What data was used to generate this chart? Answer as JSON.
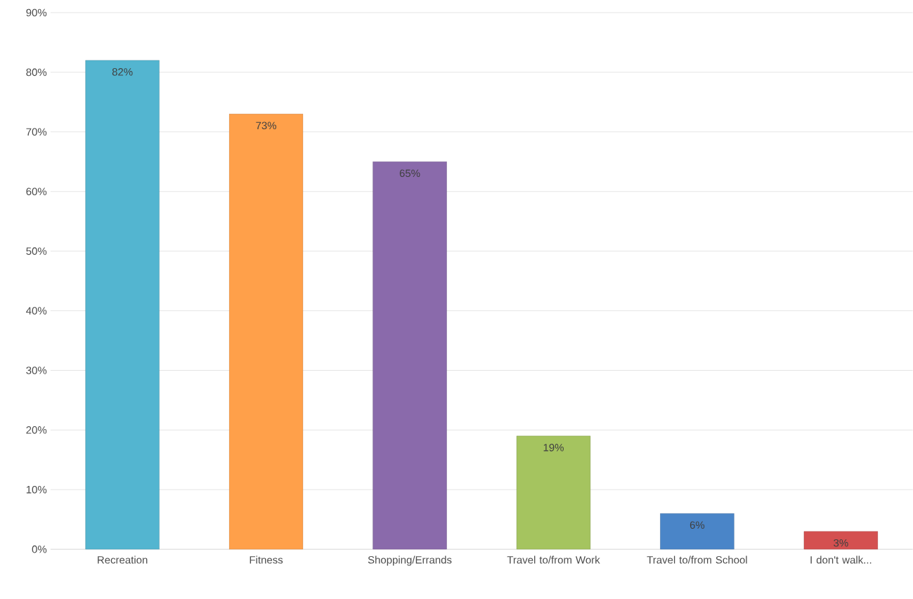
{
  "chart_data": {
    "type": "bar",
    "categories": [
      "Recreation",
      "Fitness",
      "Shopping/Errands",
      "Travel to/from Work",
      "Travel to/from School",
      "I don't walk..."
    ],
    "values": [
      82,
      73,
      65,
      19,
      6,
      3
    ],
    "colors": [
      "#53b5d0",
      "#ffa04a",
      "#8a6aab",
      "#a5c45f",
      "#4a85c8",
      "#d45050"
    ],
    "value_labels": [
      "82%",
      "73%",
      "65%",
      "19%",
      "6%",
      "3%"
    ],
    "ylim": [
      0,
      90
    ],
    "yticks": [
      {
        "value": 0,
        "label": "0%"
      },
      {
        "value": 10,
        "label": "10%"
      },
      {
        "value": 20,
        "label": "20%"
      },
      {
        "value": 30,
        "label": "30%"
      },
      {
        "value": 40,
        "label": "40%"
      },
      {
        "value": 50,
        "label": "50%"
      },
      {
        "value": 60,
        "label": "60%"
      },
      {
        "value": 70,
        "label": "70%"
      },
      {
        "value": 80,
        "label": "80%"
      },
      {
        "value": 90,
        "label": "90%"
      }
    ],
    "grid": "y"
  }
}
